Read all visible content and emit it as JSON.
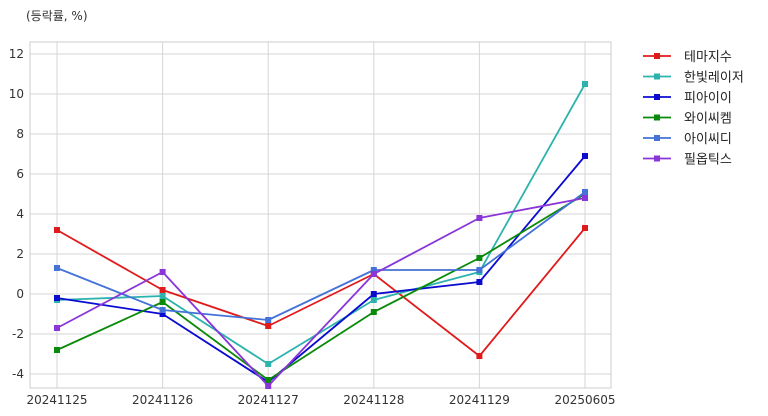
{
  "chart_data": {
    "type": "line",
    "unit_label": "(등락률, %)",
    "categories": [
      "20241125",
      "20241126",
      "20241127",
      "20241128",
      "20241129",
      "20250605"
    ],
    "ylim": [
      -4.7,
      12.6
    ],
    "yticks": [
      -4,
      -2,
      0,
      2,
      4,
      6,
      8,
      10,
      12
    ],
    "grid": true,
    "legend_position": "right",
    "series": [
      {
        "name": "테마지수",
        "color": "#e01b1b",
        "values": [
          3.2,
          0.2,
          -1.6,
          1.0,
          -3.1,
          3.3
        ]
      },
      {
        "name": "한빛레이저",
        "color": "#2cb3ad",
        "values": [
          -0.3,
          -0.1,
          -3.5,
          -0.3,
          1.1,
          10.5
        ]
      },
      {
        "name": "피아이이",
        "color": "#0b0bd0",
        "values": [
          -0.2,
          -1.0,
          -4.4,
          0.0,
          0.6,
          6.9
        ]
      },
      {
        "name": "와이씨켐",
        "color": "#0a8a0a",
        "values": [
          -2.8,
          -0.4,
          -4.3,
          -0.9,
          1.8,
          5.0
        ]
      },
      {
        "name": "아이씨디",
        "color": "#4472d8",
        "values": [
          1.3,
          -0.8,
          -1.3,
          1.2,
          1.2,
          5.1
        ]
      },
      {
        "name": "필옵틱스",
        "color": "#8a35d8",
        "values": [
          -1.7,
          1.1,
          -4.6,
          1.0,
          3.8,
          4.8
        ]
      }
    ]
  }
}
